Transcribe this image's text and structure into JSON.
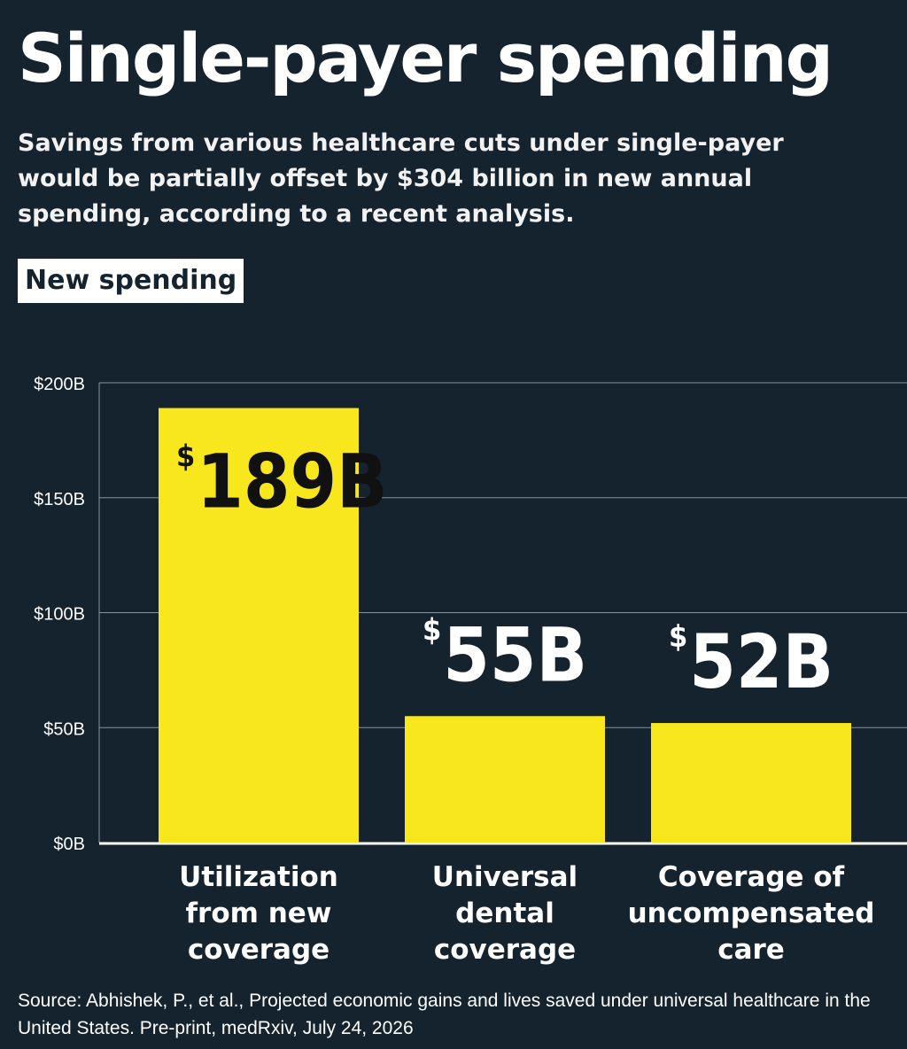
{
  "header": {
    "title": "Single-payer spending",
    "subtitle": "Savings from various healthcare cuts under single-payer would be partially offset by $304 billion in new annual spending, according to a recent analysis.",
    "tag": "New spending"
  },
  "chart_data": {
    "type": "bar",
    "categories": [
      [
        "Utilization",
        "from new",
        "coverage"
      ],
      [
        "Universal",
        "dental",
        "coverage"
      ],
      [
        "Coverage of",
        "uncompensated",
        "care"
      ]
    ],
    "values": [
      189,
      55,
      52
    ],
    "value_labels": [
      "189B",
      "55B",
      "52B"
    ],
    "currency_symbol": "$",
    "ylim": [
      0,
      200
    ],
    "yticks": [
      0,
      50,
      100,
      150,
      200
    ],
    "ytick_labels": [
      "$0B",
      "$50B",
      "$100B",
      "$150B",
      "$200B"
    ],
    "grid": true,
    "bar_color": "#f9e71e",
    "background_color": "#15232f",
    "grid_color": "#8a949c",
    "inside_label_color": "#111111",
    "outside_label_color": "#ffffff"
  },
  "footer": {
    "source": "Source: Abhishek, P., et al., Projected economic gains and lives saved under universal healthcare in the United States. Pre-print, medRxiv, July 24, 2026"
  }
}
